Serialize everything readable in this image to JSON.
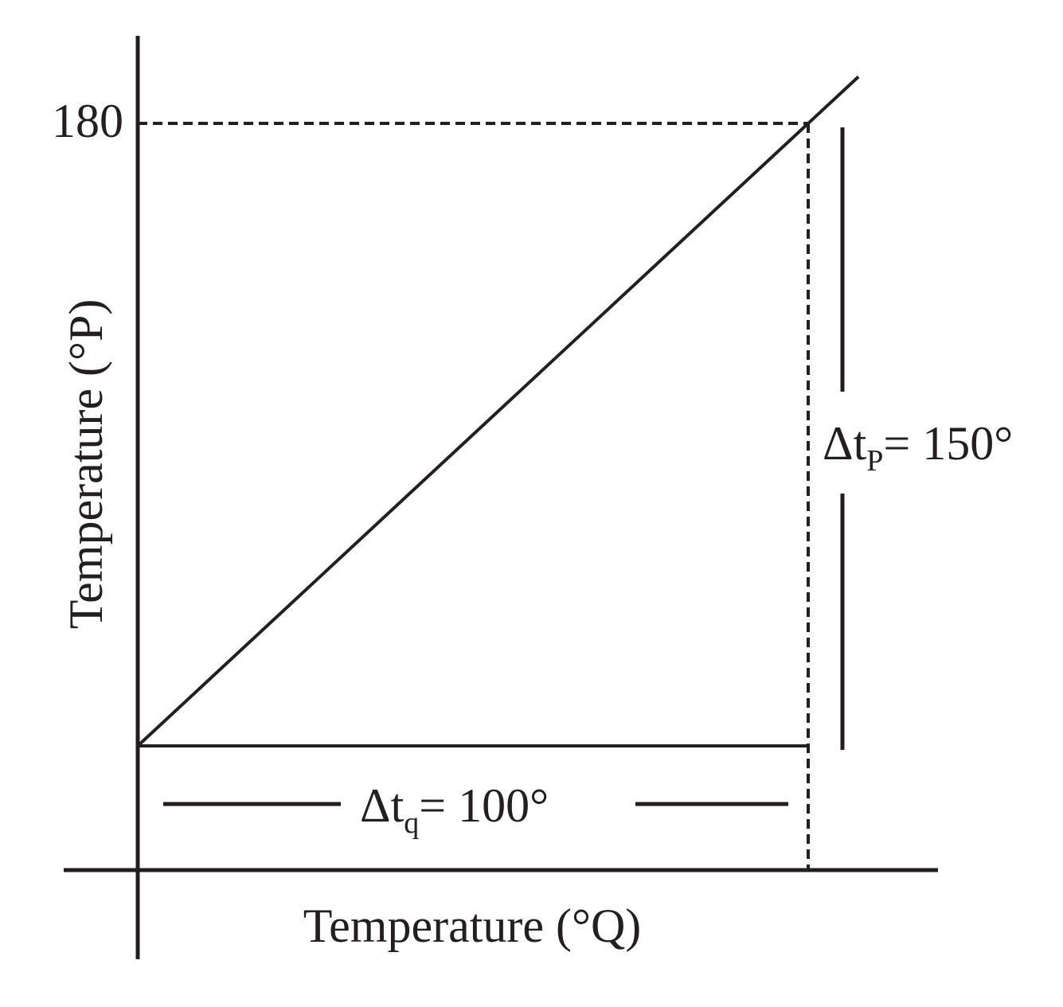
{
  "chart_data": {
    "type": "line",
    "xlabel": "Temperature (°Q)",
    "ylabel": "Temperature (°P)",
    "y_tick_labels": [
      "180"
    ],
    "series": [
      {
        "x": [
          0,
          100
        ],
        "y": [
          30,
          180
        ]
      }
    ],
    "reference_lines": [
      {
        "orientation": "horizontal",
        "value": 180,
        "style": "dashed"
      },
      {
        "orientation": "vertical",
        "value": 100,
        "style": "dashed"
      }
    ],
    "annotations": {
      "delta_q": {
        "base": "Δt",
        "sub": "q",
        "rest": "= 100°"
      },
      "delta_p": {
        "base": "Δt",
        "sub": "P",
        "rest": "= 150°"
      }
    }
  },
  "colors": {
    "ink": "#231f20"
  }
}
